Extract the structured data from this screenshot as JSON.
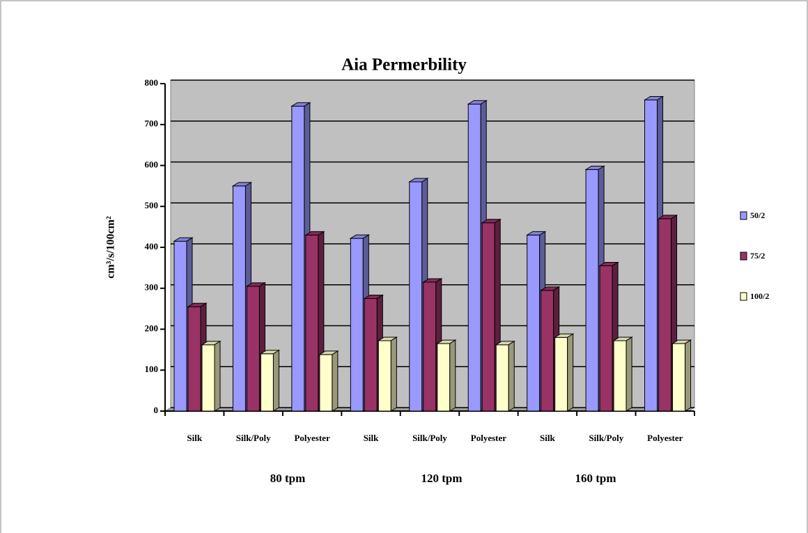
{
  "chart_data": {
    "type": "bar3d",
    "title": "Aia Permerbility",
    "y_label": "cm³/s/100cm²",
    "categories": [
      "Silk",
      "Silk/Poly",
      "Polyester",
      "Silk",
      "Silk/Poly",
      "Polyester",
      "Silk",
      "Silk/Poly",
      "Polyester"
    ],
    "groups": [
      "80 tpm",
      "120 tpm",
      "160 tpm"
    ],
    "series": [
      {
        "name": "50/2",
        "color": "#9999ff",
        "values": [
          415,
          550,
          745,
          422,
          560,
          750,
          430,
          590,
          760
        ]
      },
      {
        "name": "75/2",
        "color": "#993366",
        "values": [
          255,
          305,
          430,
          275,
          315,
          460,
          295,
          355,
          470
        ]
      },
      {
        "name": "100/2",
        "color": "#ffffcc",
        "values": [
          162,
          140,
          138,
          172,
          165,
          162,
          180,
          172,
          165
        ]
      }
    ],
    "ylim": [
      0,
      800
    ],
    "yticks": [
      0,
      100,
      200,
      300,
      400,
      500,
      600,
      700,
      800
    ],
    "grid": true,
    "legend": "right"
  }
}
